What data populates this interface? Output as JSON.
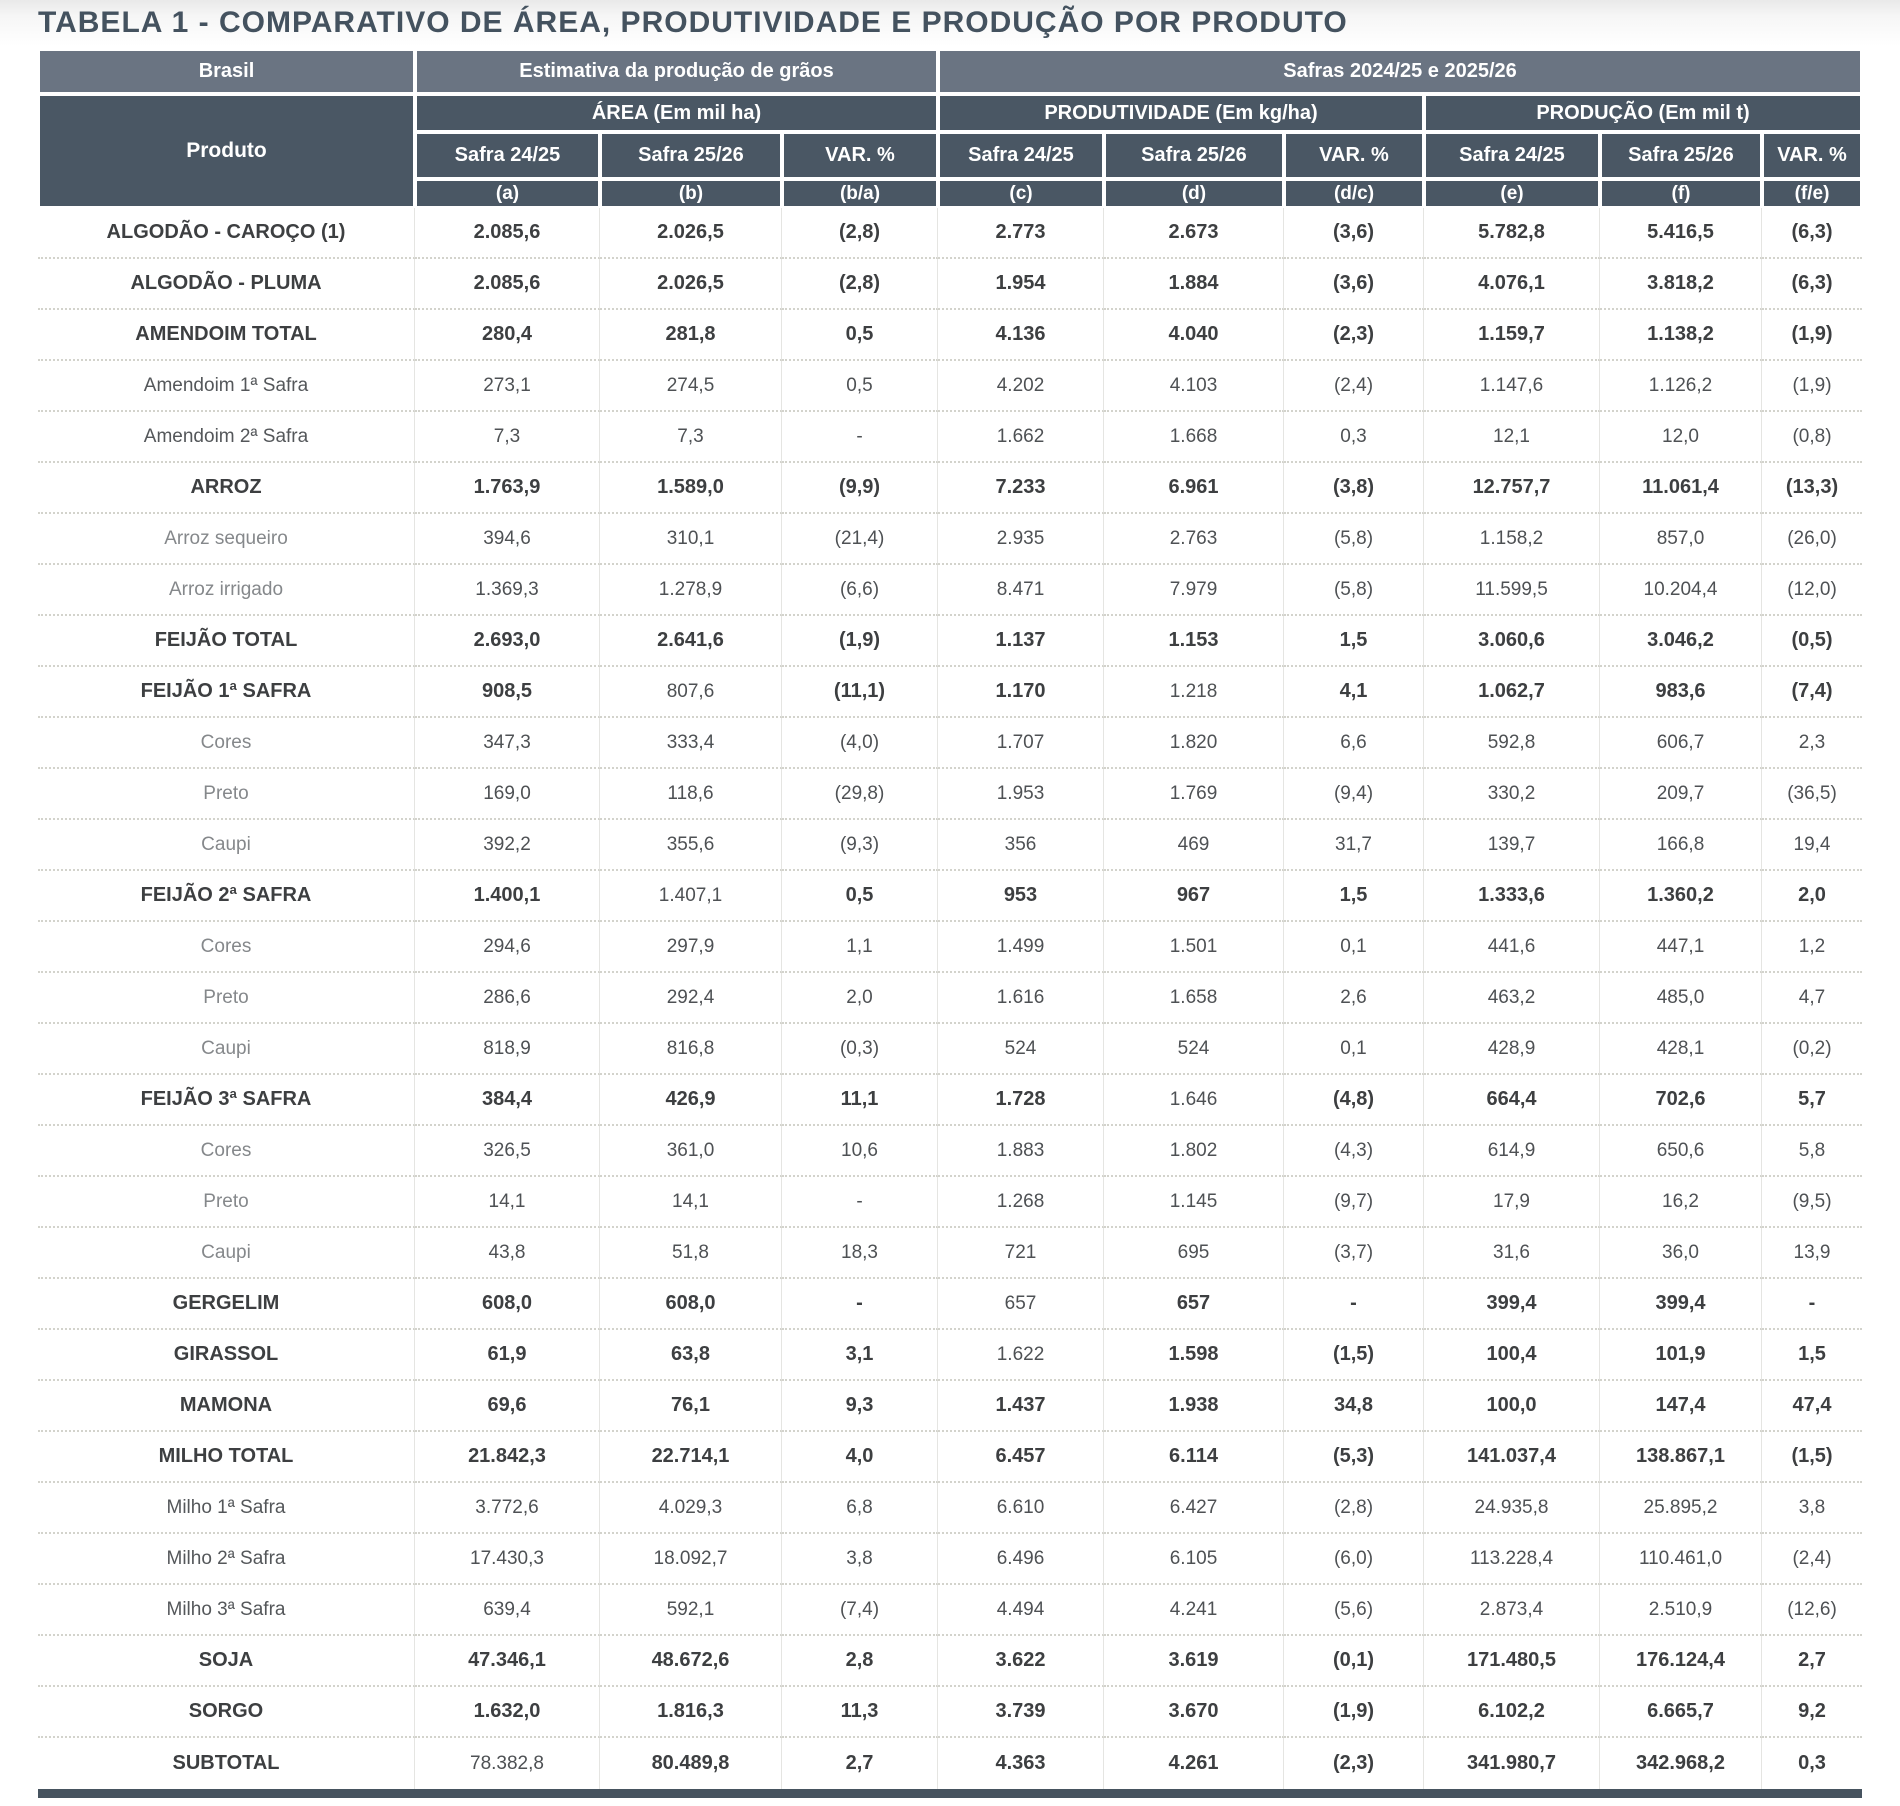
{
  "title": "TABELA 1 - COMPARATIVO DE ÁREA, PRODUTIVIDADE E PRODUÇÃO POR PRODUTO",
  "colors": {
    "header_band_light": "#6a7482",
    "header_band_dark": "#4a5764",
    "title_text": "#44525f",
    "bottom_bar": "#46535f",
    "dotted_separator": "#d3d3cc"
  },
  "table": {
    "header": {
      "brasil": "Brasil",
      "estimativa": "Estimativa da produção de grãos",
      "safras": "Safras 2024/25 e 2025/26",
      "produto": "Produto",
      "groups": [
        {
          "label": "ÁREA (Em mil ha)"
        },
        {
          "label": "PRODUTIVIDADE (Em kg/ha)"
        },
        {
          "label": "PRODUÇÃO (Em mil t)"
        }
      ],
      "season_cols": [
        "Safra 24/25",
        "Safra 25/26",
        "VAR. %",
        "Safra 24/25",
        "Safra 25/26",
        "VAR. %",
        "Safra 24/25",
        "Safra 25/26",
        "VAR. %"
      ],
      "letter_cols": [
        "(a)",
        "(b)",
        "(b/a)",
        "(c)",
        "(d)",
        "(d/c)",
        "(e)",
        "(f)",
        "(f/e)"
      ]
    },
    "rows": [
      {
        "label": "ALGODÃO - CAROÇO (1)",
        "style": "total",
        "cells": [
          "2.085,6",
          "2.026,5",
          "(2,8)",
          "2.773",
          "2.673",
          "(3,6)",
          "5.782,8",
          "5.416,5",
          "(6,3)"
        ]
      },
      {
        "label": "ALGODÃO - PLUMA",
        "style": "total",
        "cells": [
          "2.085,6",
          "2.026,5",
          "(2,8)",
          "1.954",
          "1.884",
          "(3,6)",
          "4.076,1",
          "3.818,2",
          "(6,3)"
        ]
      },
      {
        "label": "AMENDOIM TOTAL",
        "style": "total",
        "cells": [
          "280,4",
          "281,8",
          "0,5",
          "4.136",
          "4.040",
          "(2,3)",
          "1.159,7",
          "1.138,2",
          "(1,9)"
        ]
      },
      {
        "label": "Amendoim 1ª Safra",
        "style": "sub",
        "cells": [
          "273,1",
          "274,5",
          "0,5",
          "4.202",
          "4.103",
          "(2,4)",
          "1.147,6",
          "1.126,2",
          "(1,9)"
        ]
      },
      {
        "label": "Amendoim 2ª Safra",
        "style": "sub",
        "cells": [
          "7,3",
          "7,3",
          "-",
          "1.662",
          "1.668",
          "0,3",
          "12,1",
          "12,0",
          "(0,8)"
        ]
      },
      {
        "label": "ARROZ",
        "style": "total",
        "cells": [
          "1.763,9",
          "1.589,0",
          "(9,9)",
          "7.233",
          "6.961",
          "(3,8)",
          "12.757,7",
          "11.061,4",
          "(13,3)"
        ]
      },
      {
        "label": "Arroz sequeiro",
        "style": "light",
        "cells": [
          "394,6",
          "310,1",
          "(21,4)",
          "2.935",
          "2.763",
          "(5,8)",
          "1.158,2",
          "857,0",
          "(26,0)"
        ]
      },
      {
        "label": "Arroz irrigado",
        "style": "light",
        "cells": [
          "1.369,3",
          "1.278,9",
          "(6,6)",
          "8.471",
          "7.979",
          "(5,8)",
          "11.599,5",
          "10.204,4",
          "(12,0)"
        ]
      },
      {
        "label": "FEIJÃO TOTAL",
        "style": "total",
        "cells": [
          "2.693,0",
          "2.641,6",
          "(1,9)",
          "1.137",
          "1.153",
          "1,5",
          "3.060,6",
          "3.046,2",
          "(0,5)"
        ]
      },
      {
        "label": "FEIJÃO 1ª SAFRA",
        "style": "total",
        "regular": [
          1,
          4
        ],
        "cells": [
          "908,5",
          "807,6",
          "(11,1)",
          "1.170",
          "1.218",
          "4,1",
          "1.062,7",
          "983,6",
          "(7,4)"
        ]
      },
      {
        "label": "Cores",
        "style": "light",
        "cells": [
          "347,3",
          "333,4",
          "(4,0)",
          "1.707",
          "1.820",
          "6,6",
          "592,8",
          "606,7",
          "2,3"
        ]
      },
      {
        "label": "Preto",
        "style": "light",
        "cells": [
          "169,0",
          "118,6",
          "(29,8)",
          "1.953",
          "1.769",
          "(9,4)",
          "330,2",
          "209,7",
          "(36,5)"
        ]
      },
      {
        "label": "Caupi",
        "style": "light",
        "cells": [
          "392,2",
          "355,6",
          "(9,3)",
          "356",
          "469",
          "31,7",
          "139,7",
          "166,8",
          "19,4"
        ]
      },
      {
        "label": "FEIJÃO 2ª SAFRA",
        "style": "total",
        "regular": [
          1
        ],
        "cells": [
          "1.400,1",
          "1.407,1",
          "0,5",
          "953",
          "967",
          "1,5",
          "1.333,6",
          "1.360,2",
          "2,0"
        ]
      },
      {
        "label": "Cores",
        "style": "light",
        "cells": [
          "294,6",
          "297,9",
          "1,1",
          "1.499",
          "1.501",
          "0,1",
          "441,6",
          "447,1",
          "1,2"
        ]
      },
      {
        "label": "Preto",
        "style": "light",
        "cells": [
          "286,6",
          "292,4",
          "2,0",
          "1.616",
          "1.658",
          "2,6",
          "463,2",
          "485,0",
          "4,7"
        ]
      },
      {
        "label": "Caupi",
        "style": "light",
        "cells": [
          "818,9",
          "816,8",
          "(0,3)",
          "524",
          "524",
          "0,1",
          "428,9",
          "428,1",
          "(0,2)"
        ]
      },
      {
        "label": "FEIJÃO 3ª SAFRA",
        "style": "total",
        "regular": [
          4
        ],
        "cells": [
          "384,4",
          "426,9",
          "11,1",
          "1.728",
          "1.646",
          "(4,8)",
          "664,4",
          "702,6",
          "5,7"
        ]
      },
      {
        "label": "Cores",
        "style": "light",
        "cells": [
          "326,5",
          "361,0",
          "10,6",
          "1.883",
          "1.802",
          "(4,3)",
          "614,9",
          "650,6",
          "5,8"
        ]
      },
      {
        "label": "Preto",
        "style": "light",
        "cells": [
          "14,1",
          "14,1",
          "-",
          "1.268",
          "1.145",
          "(9,7)",
          "17,9",
          "16,2",
          "(9,5)"
        ]
      },
      {
        "label": "Caupi",
        "style": "light",
        "cells": [
          "43,8",
          "51,8",
          "18,3",
          "721",
          "695",
          "(3,7)",
          "31,6",
          "36,0",
          "13,9"
        ]
      },
      {
        "label": "GERGELIM",
        "style": "total",
        "regular": [
          3
        ],
        "cells": [
          "608,0",
          "608,0",
          "-",
          "657",
          "657",
          "-",
          "399,4",
          "399,4",
          "-"
        ]
      },
      {
        "label": "GIRASSOL",
        "style": "total",
        "regular": [
          3
        ],
        "cells": [
          "61,9",
          "63,8",
          "3,1",
          "1.622",
          "1.598",
          "(1,5)",
          "100,4",
          "101,9",
          "1,5"
        ]
      },
      {
        "label": "MAMONA",
        "style": "total",
        "cells": [
          "69,6",
          "76,1",
          "9,3",
          "1.437",
          "1.938",
          "34,8",
          "100,0",
          "147,4",
          "47,4"
        ]
      },
      {
        "label": "MILHO TOTAL",
        "style": "total",
        "cells": [
          "21.842,3",
          "22.714,1",
          "4,0",
          "6.457",
          "6.114",
          "(5,3)",
          "141.037,4",
          "138.867,1",
          "(1,5)"
        ]
      },
      {
        "label": "Milho 1ª Safra",
        "style": "sub",
        "cells": [
          "3.772,6",
          "4.029,3",
          "6,8",
          "6.610",
          "6.427",
          "(2,8)",
          "24.935,8",
          "25.895,2",
          "3,8"
        ]
      },
      {
        "label": "Milho 2ª Safra",
        "style": "sub",
        "cells": [
          "17.430,3",
          "18.092,7",
          "3,8",
          "6.496",
          "6.105",
          "(6,0)",
          "113.228,4",
          "110.461,0",
          "(2,4)"
        ]
      },
      {
        "label": "Milho 3ª Safra",
        "style": "sub",
        "cells": [
          "639,4",
          "592,1",
          "(7,4)",
          "4.494",
          "4.241",
          "(5,6)",
          "2.873,4",
          "2.510,9",
          "(12,6)"
        ]
      },
      {
        "label": "SOJA",
        "style": "total",
        "cells": [
          "47.346,1",
          "48.672,6",
          "2,8",
          "3.622",
          "3.619",
          "(0,1)",
          "171.480,5",
          "176.124,4",
          "2,7"
        ]
      },
      {
        "label": "SORGO",
        "style": "total",
        "cells": [
          "1.632,0",
          "1.816,3",
          "11,3",
          "3.739",
          "3.670",
          "(1,9)",
          "6.102,2",
          "6.665,7",
          "9,2"
        ]
      },
      {
        "label": "SUBTOTAL",
        "style": "total",
        "regular": [
          0
        ],
        "cells": [
          "78.382,8",
          "80.489,8",
          "2,7",
          "4.363",
          "4.261",
          "(2,3)",
          "341.980,7",
          "342.968,2",
          "0,3"
        ]
      }
    ]
  }
}
